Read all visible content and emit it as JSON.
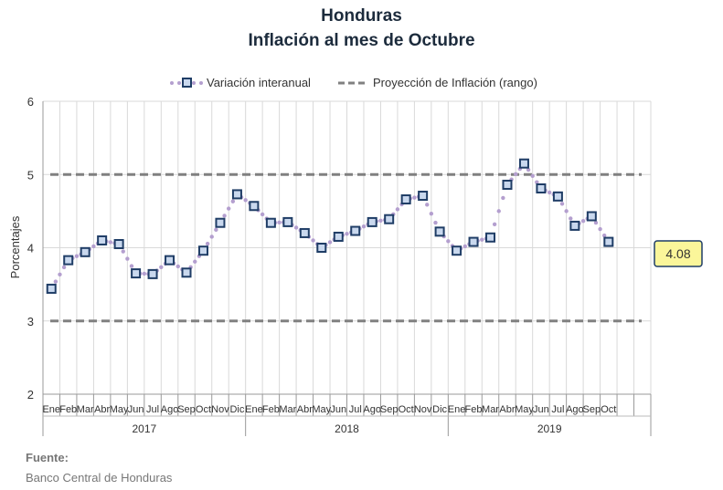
{
  "title": "Honduras",
  "subtitle": "Inflación al mes de Octubre",
  "source_label": "Fuente:",
  "source_text": "Banco Central de Honduras",
  "colors": {
    "marker_border": "#1f3d66",
    "marker_fill": "#c9d8ee",
    "dots": "#b49fcf",
    "dashed": "#808080",
    "grid": "#d9d9d9",
    "callout_fill": "#fbf69a",
    "callout_border": "#1f3d66"
  },
  "chart_data": {
    "type": "line",
    "ylabel": "Porcentajes",
    "ylim": [
      2,
      6
    ],
    "yticks": [
      2,
      3,
      4,
      5,
      6
    ],
    "grid": true,
    "legend_position": "top",
    "months": [
      "Ene",
      "Feb",
      "Mar",
      "Abr",
      "May",
      "Jun",
      "Jul",
      "Ago",
      "Sep",
      "Oct",
      "Nov",
      "Dic"
    ],
    "years": [
      "2017",
      "2018",
      "2019"
    ],
    "series": [
      {
        "name": "Variación interanual",
        "values": [
          3.44,
          3.83,
          3.94,
          4.1,
          4.05,
          3.65,
          3.64,
          3.83,
          3.66,
          3.96,
          4.34,
          4.73,
          4.57,
          4.34,
          4.35,
          4.2,
          4.0,
          4.15,
          4.23,
          4.35,
          4.39,
          4.66,
          4.71,
          4.22,
          3.96,
          4.08,
          4.14,
          4.86,
          5.15,
          4.81,
          4.7,
          4.3,
          4.43,
          4.08
        ]
      },
      {
        "name": "Proyección de Inflación (rango)",
        "values": [
          3,
          5
        ]
      }
    ],
    "callout": "4.08"
  }
}
